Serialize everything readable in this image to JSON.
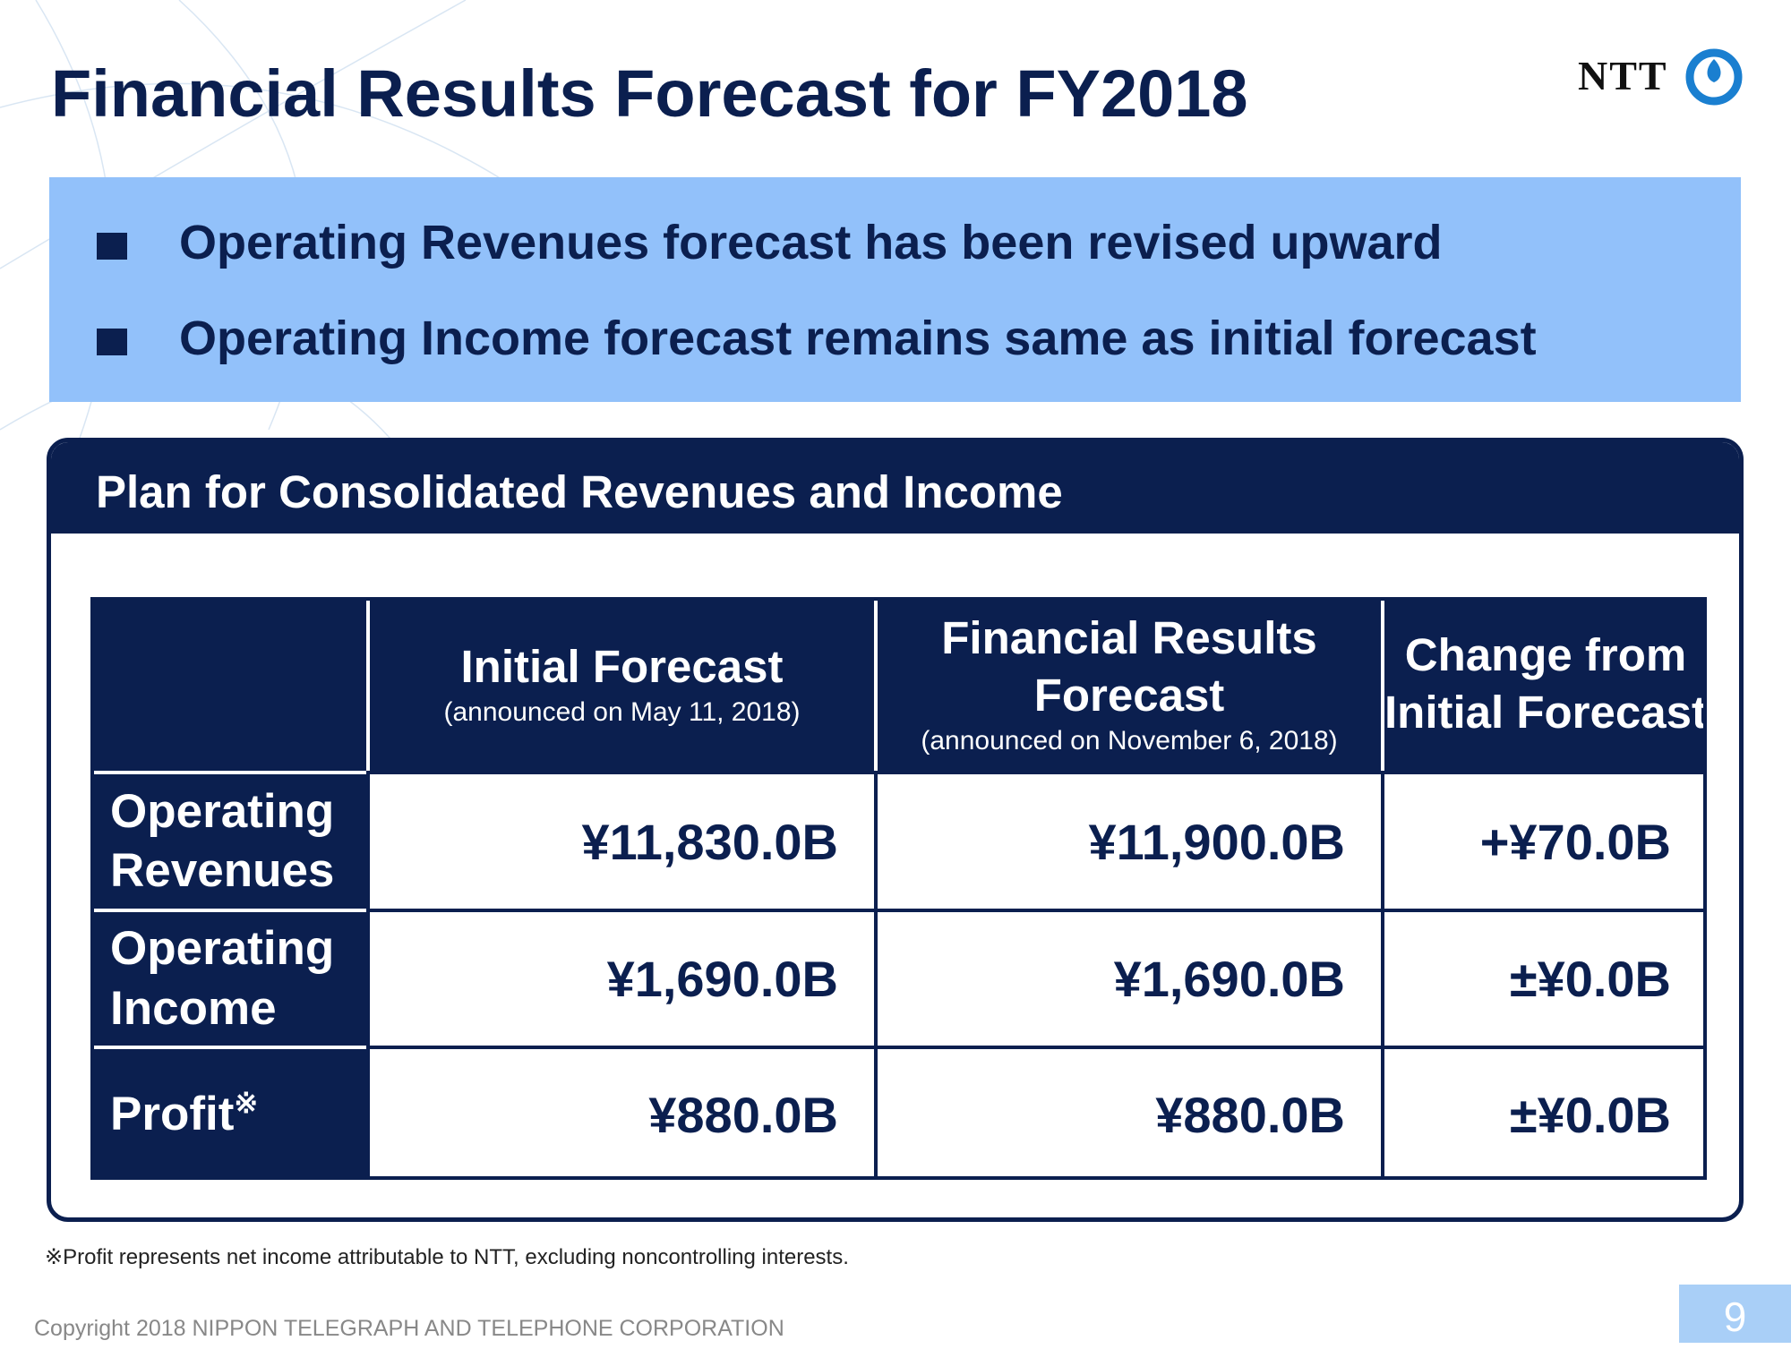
{
  "header": {
    "title": "Financial Results Forecast for FY2018",
    "logo": "NTT"
  },
  "bullets": [
    "Operating Revenues forecast has been revised upward",
    "Operating Income forecast remains same as initial forecast"
  ],
  "panel": {
    "title": "Plan for Consolidated Revenues and Income"
  },
  "table": {
    "columns": [
      {
        "title": "Initial Forecast",
        "subtitle": "(announced on May 11, 2018)"
      },
      {
        "title": "Financial Results Forecast",
        "subtitle": "(announced on November 6, 2018)"
      },
      {
        "title": "Change from Initial Forecast"
      }
    ],
    "rows": [
      {
        "label": "Operating Revenues",
        "values": [
          "¥11,830.0B",
          "¥11,900.0B",
          "+¥70.0B"
        ]
      },
      {
        "label": "Operating Income",
        "values": [
          "¥1,690.0B",
          "¥1,690.0B",
          "±¥0.0B"
        ]
      },
      {
        "label": "Profit",
        "mark": "※",
        "values": [
          "¥880.0B",
          "¥880.0B",
          "±¥0.0B"
        ]
      }
    ]
  },
  "footnote": "※Profit represents net income attributable to NTT, excluding noncontrolling interests.",
  "footer": {
    "copyright": "Copyright 2018 NIPPON TELEGRAPH AND TELEPHONE CORPORATION",
    "page": "9"
  }
}
